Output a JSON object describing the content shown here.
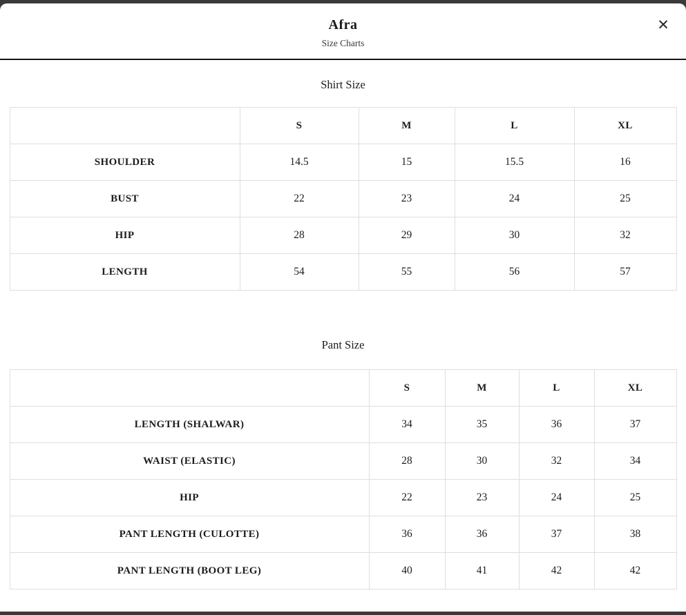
{
  "modal": {
    "title": "Afra",
    "subtitle": "Size Charts",
    "close_glyph": "✕"
  },
  "shirt_chart": {
    "title": "Shirt Size",
    "columns": [
      "S",
      "M",
      "L",
      "XL"
    ],
    "rows": [
      {
        "label": "SHOULDER",
        "values": [
          "14.5",
          "15",
          "15.5",
          "16"
        ]
      },
      {
        "label": "BUST",
        "values": [
          "22",
          "23",
          "24",
          "25"
        ]
      },
      {
        "label": "HIP",
        "values": [
          "28",
          "29",
          "30",
          "32"
        ]
      },
      {
        "label": "LENGTH",
        "values": [
          "54",
          "55",
          "56",
          "57"
        ]
      }
    ]
  },
  "pant_chart": {
    "title": "Pant Size",
    "columns": [
      "S",
      "M",
      "L",
      "XL"
    ],
    "rows": [
      {
        "label": "LENGTH (SHALWAR)",
        "values": [
          "34",
          "35",
          "36",
          "37"
        ]
      },
      {
        "label": "WAIST (ELASTIC)",
        "values": [
          "28",
          "30",
          "32",
          "34"
        ]
      },
      {
        "label": "HIP",
        "values": [
          "22",
          "23",
          "24",
          "25"
        ]
      },
      {
        "label": "PANT LENGTH (CULOTTE)",
        "values": [
          "36",
          "36",
          "37",
          "38"
        ]
      },
      {
        "label": "PANT LENGTH (BOOT LEG)",
        "values": [
          "40",
          "41",
          "42",
          "42"
        ]
      }
    ]
  },
  "colors": {
    "page_strip": "#3a3a3a",
    "header_divider": "#161616",
    "table_border": "#dedede",
    "text": "#1c1c1c"
  }
}
